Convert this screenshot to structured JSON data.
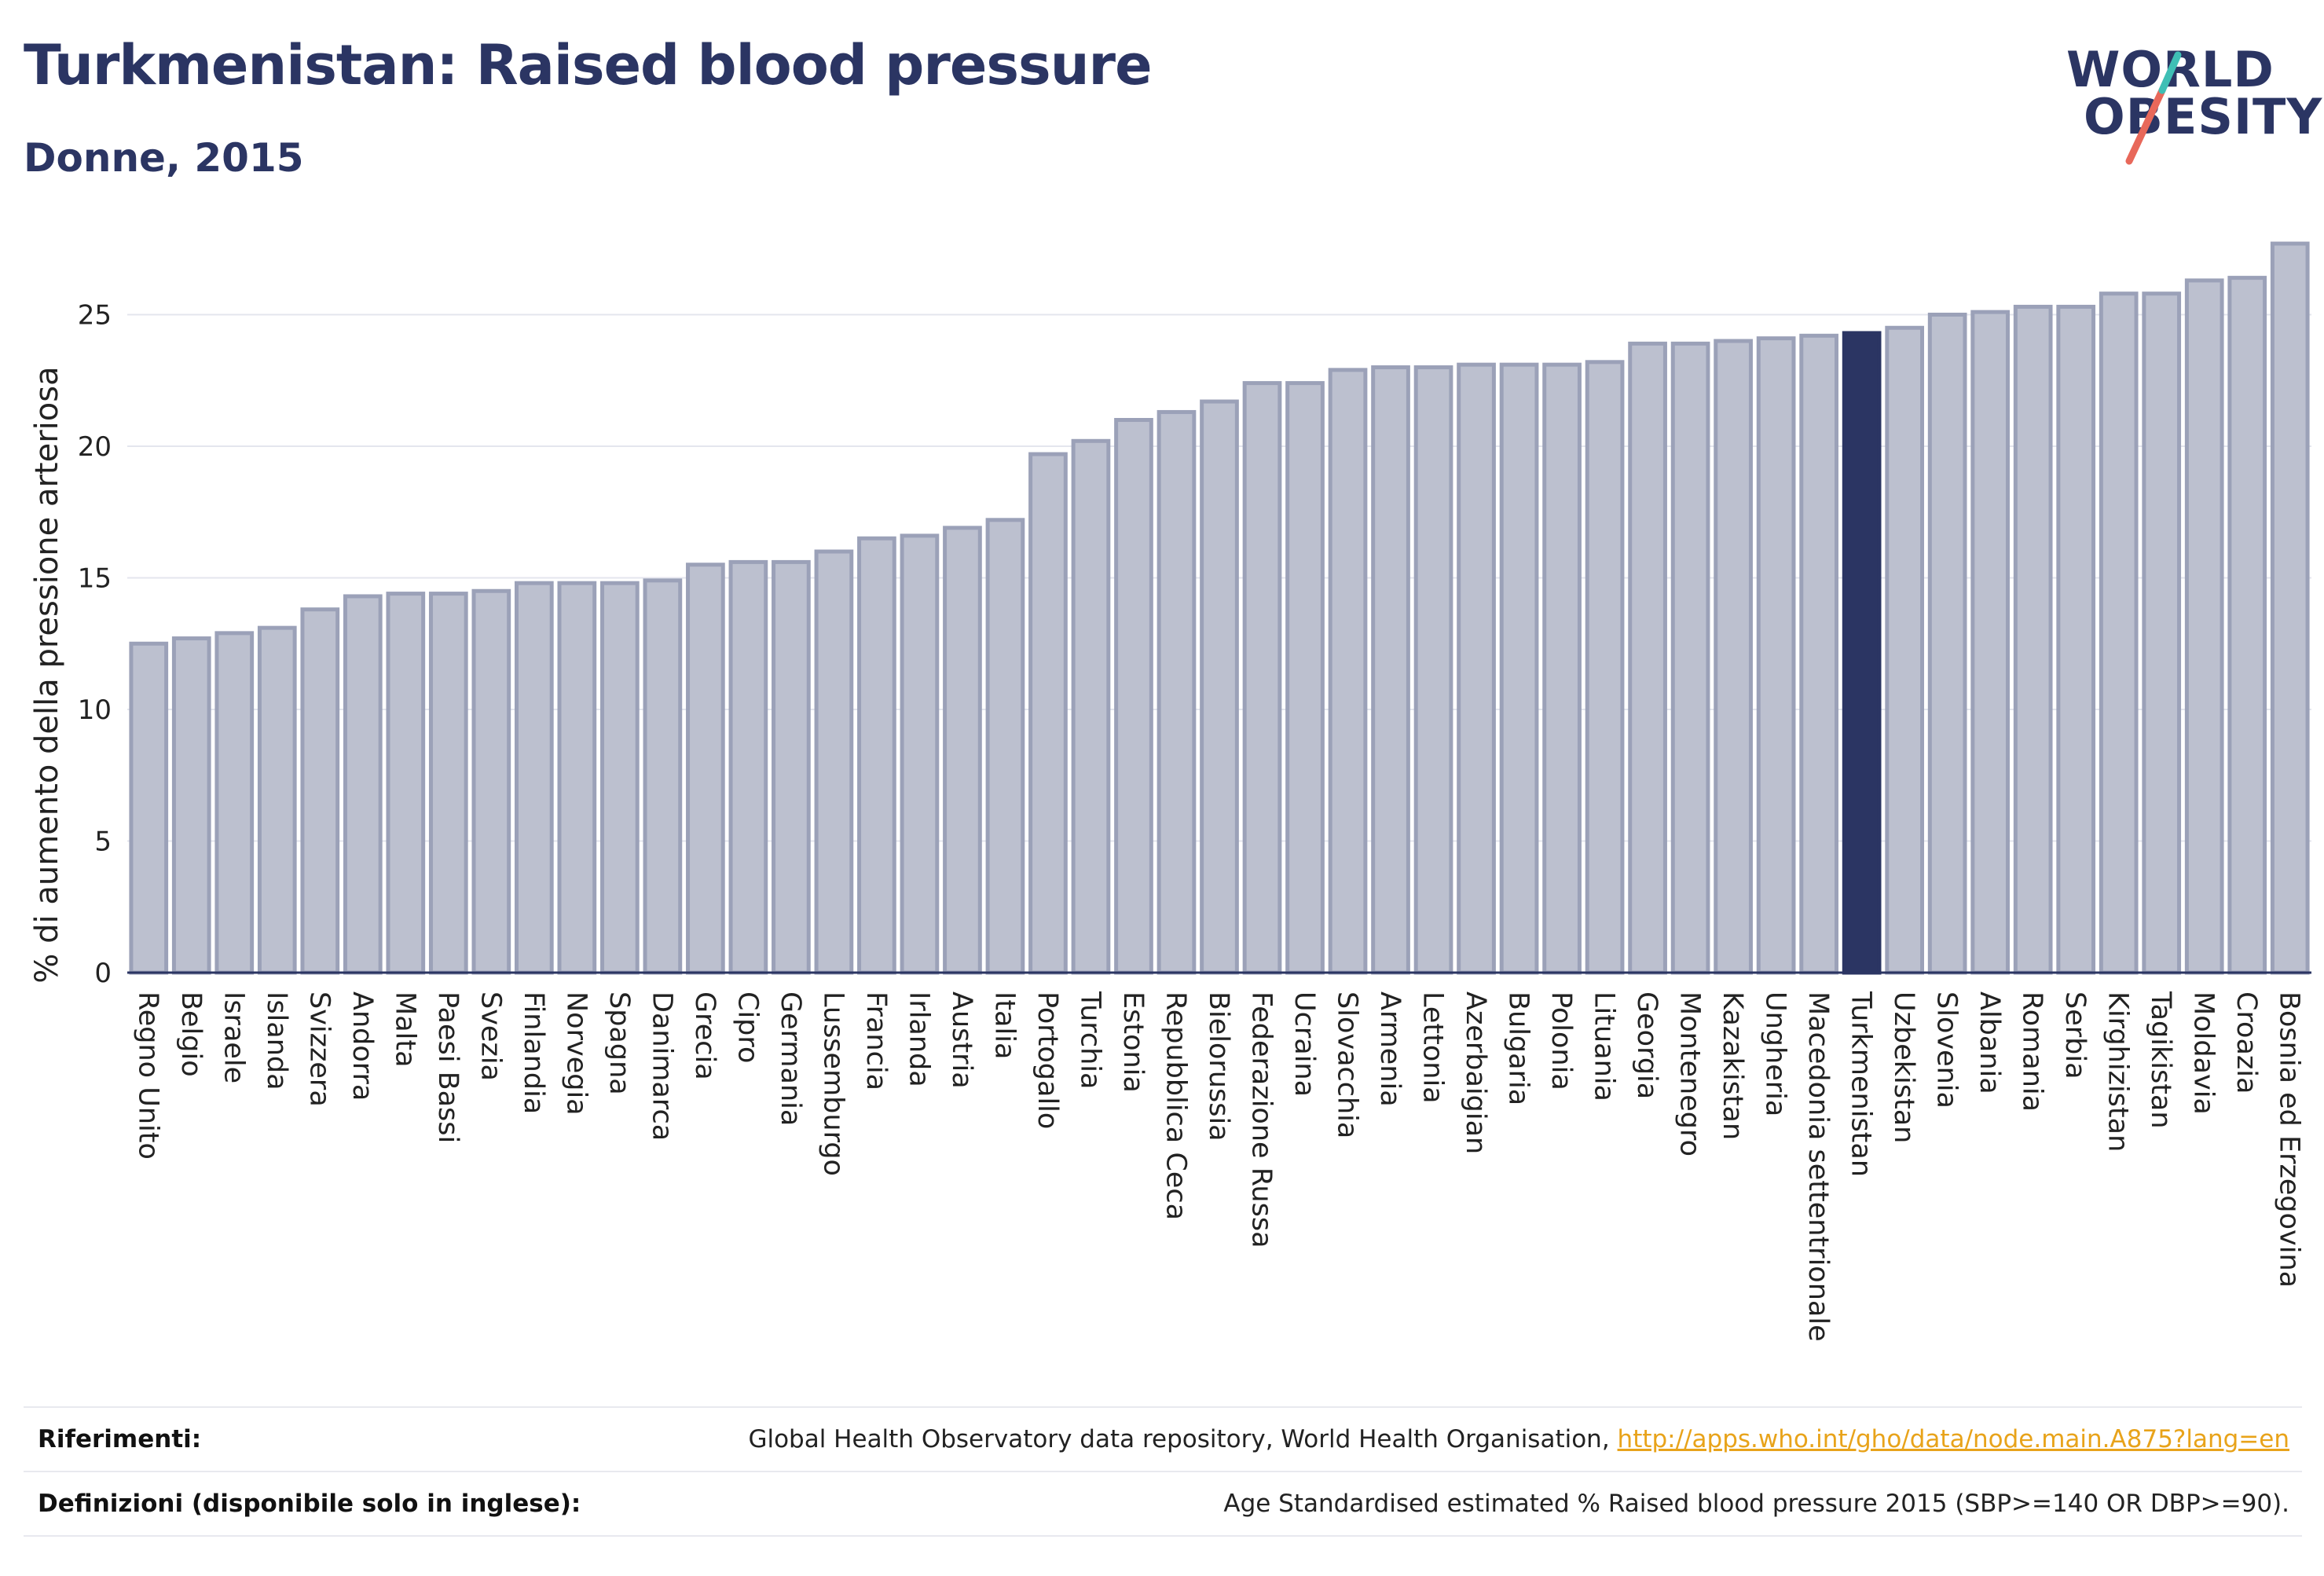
{
  "header": {
    "title": "Turkmenistan: Raised blood pressure",
    "subtitle": "Donne, 2015"
  },
  "logo": {
    "line1": "WORLD",
    "line2": "OBESITY",
    "colors": {
      "text": "#2b3563",
      "accent_teal": "#3fbfb5",
      "accent_red": "#e8685a"
    }
  },
  "colors": {
    "bar_fill": "#bcc0cf",
    "bar_stroke": "#9ba1b8",
    "highlight_fill": "#2b3563",
    "grid": "#e4e6ee",
    "axis": "#2b3563",
    "text": "#222222"
  },
  "chart_data": {
    "type": "bar",
    "title": "Turkmenistan: Raised blood pressure",
    "subtitle": "Donne, 2015",
    "ylabel": "% di aumento della pressione arteriosa",
    "xlabel": "",
    "ylim": [
      0,
      28
    ],
    "yticks": [
      0,
      5,
      10,
      15,
      20,
      25
    ],
    "grid": true,
    "highlight": "Turkmenistan",
    "categories": [
      "Regno Unito",
      "Belgio",
      "Israele",
      "Islanda",
      "Svizzera",
      "Andorra",
      "Malta",
      "Paesi Bassi",
      "Svezia",
      "Finlandia",
      "Norvegia",
      "Spagna",
      "Danimarca",
      "Grecia",
      "Cipro",
      "Germania",
      "Lussemburgo",
      "Francia",
      "Irlanda",
      "Austria",
      "Italia",
      "Portogallo",
      "Turchia",
      "Estonia",
      "Repubblica Ceca",
      "Bielorussia",
      "Federazione Russa",
      "Ucraina",
      "Slovacchia",
      "Armenia",
      "Lettonia",
      "Azerbaigian",
      "Bulgaria",
      "Polonia",
      "Lituania",
      "Georgia",
      "Montenegro",
      "Kazakistan",
      "Ungheria",
      "Macedonia settentrionale",
      "Turkmenistan",
      "Uzbekistan",
      "Slovenia",
      "Albania",
      "Romania",
      "Serbia",
      "Kirghizistan",
      "Tagikistan",
      "Moldavia",
      "Croazia",
      "Bosnia ed Erzegovina"
    ],
    "values": [
      12.5,
      12.7,
      12.9,
      13.1,
      13.8,
      14.3,
      14.4,
      14.4,
      14.5,
      14.8,
      14.8,
      14.8,
      14.9,
      15.5,
      15.6,
      15.6,
      16.0,
      16.5,
      16.6,
      16.9,
      17.2,
      19.7,
      20.2,
      21.0,
      21.3,
      21.7,
      22.4,
      22.4,
      22.9,
      23.0,
      23.0,
      23.1,
      23.1,
      23.1,
      23.2,
      23.9,
      23.9,
      24.0,
      24.1,
      24.2,
      24.3,
      24.5,
      25.0,
      25.1,
      25.3,
      25.3,
      25.8,
      25.8,
      26.3,
      26.4,
      27.7
    ]
  },
  "footer": {
    "references_label": "Riferimenti:",
    "references_text": "Global Health Observatory data repository, World Health Organisation, ",
    "references_link": "http://apps.who.int/gho/data/node.main.A875?lang=en",
    "definitions_label": "Definizioni (disponibile solo in inglese):",
    "definitions_text": "Age Standardised estimated % Raised blood pressure 2015 (SBP>=140 OR DBP>=90)."
  }
}
